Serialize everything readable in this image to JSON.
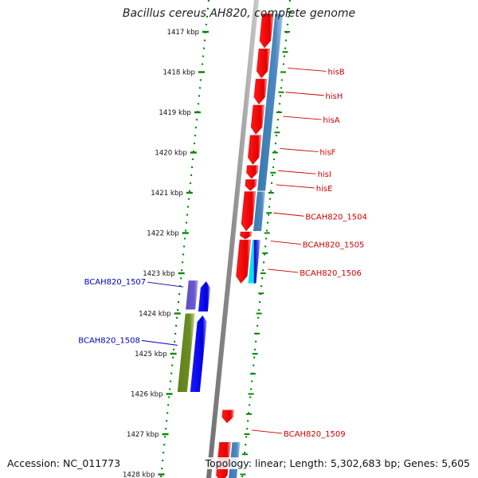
{
  "title": "Bacillus cereus AH820, complete genome",
  "footer": {
    "accession_label": "Accession:",
    "accession": "NC_011773",
    "topology_label": "Topology:",
    "topology": "linear",
    "length_label": "Length:",
    "length": "5,302,683 bp",
    "genes_label": "Genes:",
    "genes": "5,605"
  },
  "colors": {
    "forward_label": "#cc0000",
    "reverse_label": "#0000bb",
    "forward_gene": "#ff0000",
    "reverse_gene": "#0000ee",
    "steelblue": "#4682b4",
    "olive": "#6b8e23",
    "slateblue": "#6a5acd",
    "cyan": "#00e5ee",
    "scale_dash": "#008800",
    "backbone": "#808080"
  },
  "scale_ticks": [
    "1417 kbp",
    "1418 kbp",
    "1419 kbp",
    "1420 kbp",
    "1421 kbp",
    "1422 kbp",
    "1423 kbp",
    "1424 kbp",
    "1425 kbp",
    "1426 kbp",
    "1427 kbp",
    "1428 kbp"
  ],
  "right_labels": [
    {
      "text": "hisB",
      "kbp": 1417.9
    },
    {
      "text": "hisH",
      "kbp": 1418.5
    },
    {
      "text": "hisA",
      "kbp": 1419.1
    },
    {
      "text": "hisF",
      "kbp": 1419.9
    },
    {
      "text": "hisI",
      "kbp": 1420.45
    },
    {
      "text": "hisE",
      "kbp": 1420.8
    },
    {
      "text": "BCAH820_1504",
      "kbp": 1421.5
    },
    {
      "text": "BCAH820_1505",
      "kbp": 1422.2
    },
    {
      "text": "BCAH820_1506",
      "kbp": 1422.9
    },
    {
      "text": "BCAH820_1509",
      "kbp": 1426.9
    }
  ],
  "left_labels": [
    {
      "text": "BCAH820_1507",
      "kbp": 1423.3
    },
    {
      "text": "BCAH820_1508",
      "kbp": 1424.75
    }
  ],
  "forward_genes": [
    {
      "start": 1416.55,
      "end": 1417.4,
      "color": "forward_gene"
    },
    {
      "start": 1417.42,
      "end": 1418.15,
      "color": "forward_gene"
    },
    {
      "start": 1418.17,
      "end": 1418.8,
      "color": "forward_gene"
    },
    {
      "start": 1418.82,
      "end": 1419.55,
      "color": "forward_gene"
    },
    {
      "start": 1419.57,
      "end": 1420.3,
      "color": "forward_gene"
    },
    {
      "start": 1420.32,
      "end": 1420.65,
      "color": "forward_gene"
    },
    {
      "start": 1420.67,
      "end": 1420.95,
      "color": "forward_gene"
    },
    {
      "start": 1420.97,
      "end": 1421.95,
      "color": "forward_gene"
    },
    {
      "start": 1421.97,
      "end": 1422.15,
      "color": "forward_gene"
    },
    {
      "start": 1422.17,
      "end": 1423.25,
      "color": "forward_gene"
    },
    {
      "start": 1426.4,
      "end": 1426.72,
      "color": "forward_gene"
    },
    {
      "start": 1427.2,
      "end": 1428.2,
      "color": "forward_gene"
    }
  ],
  "forward_bars": [
    {
      "start": 1416.55,
      "end": 1420.95,
      "color": "steelblue"
    },
    {
      "start": 1420.97,
      "end": 1421.95,
      "color": "steelblue"
    },
    {
      "start": 1422.17,
      "end": 1423.25,
      "color": "cyan"
    },
    {
      "start": 1427.2,
      "end": 1428.2,
      "color": "steelblue"
    }
  ],
  "reverse_genes": [
    {
      "start": 1423.18,
      "end": 1423.9,
      "lane": 0,
      "color": "slateblue",
      "arrow": false
    },
    {
      "start": 1423.2,
      "end": 1423.95,
      "lane": 1,
      "color": "reverse_gene",
      "arrow": true
    },
    {
      "start": 1424.0,
      "end": 1425.95,
      "lane": 0,
      "color": "olive",
      "arrow": false
    },
    {
      "start": 1424.05,
      "end": 1425.95,
      "lane": 1,
      "color": "reverse_gene",
      "arrow": true
    }
  ]
}
